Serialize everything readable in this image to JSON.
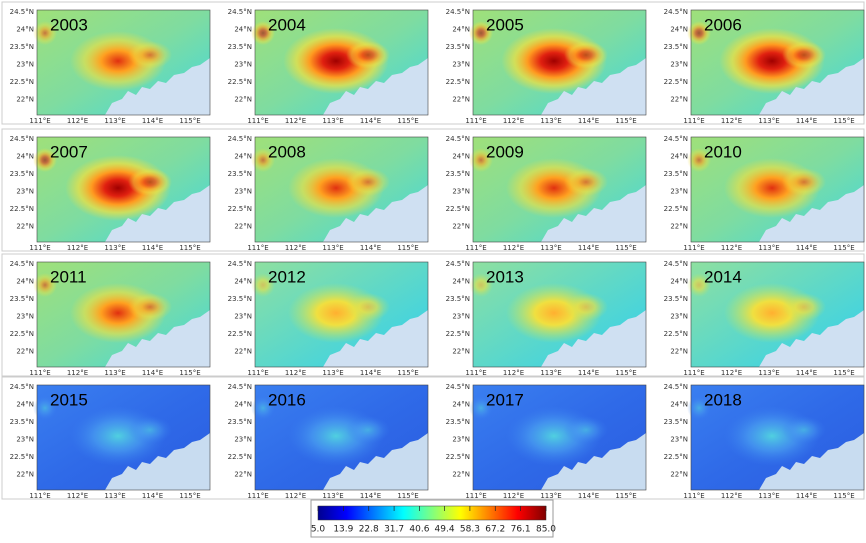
{
  "panels": [
    {
      "year": "2003"
    },
    {
      "year": "2004"
    },
    {
      "year": "2005"
    },
    {
      "year": "2006"
    },
    {
      "year": "2007"
    },
    {
      "year": "2008"
    },
    {
      "year": "2009"
    },
    {
      "year": "2010"
    },
    {
      "year": "2011"
    },
    {
      "year": "2012"
    },
    {
      "year": "2013"
    },
    {
      "year": "2014"
    },
    {
      "year": "2015"
    },
    {
      "year": "2016"
    },
    {
      "year": "2017"
    },
    {
      "year": "2018"
    }
  ],
  "lat_ticks": [
    "24.5°N",
    "24°N",
    "23.5°N",
    "23°N",
    "22.5°N",
    "22°N"
  ],
  "lon_ticks": [
    "111°E",
    "112°E",
    "113°E",
    "114°E",
    "115°E"
  ],
  "colorbar": {
    "range": [
      5,
      85
    ],
    "ticks": [
      {
        "value": 5,
        "label": "5.0"
      },
      13.9,
      22.8,
      31.7,
      40.6,
      49.4,
      58.3,
      67.2,
      76.1,
      {
        "value": 85,
        "label": "85.0"
      }
    ]
  }
}
